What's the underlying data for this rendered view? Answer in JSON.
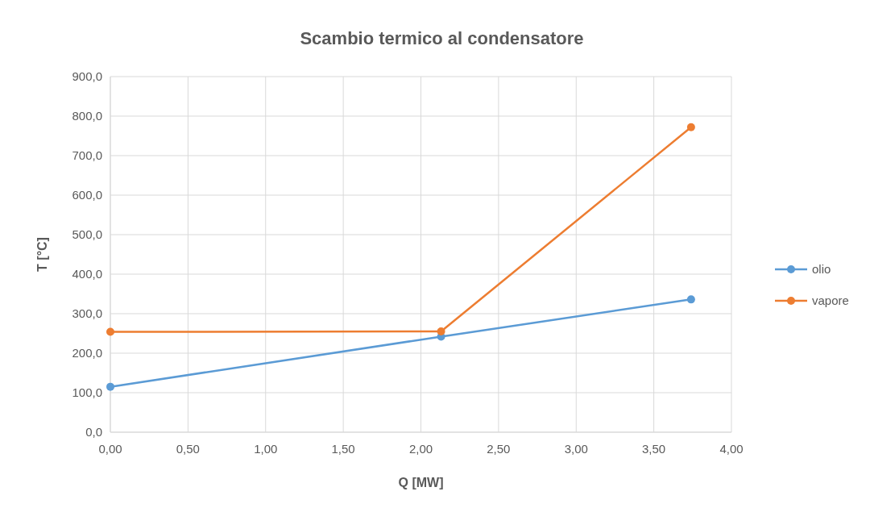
{
  "chart_data": {
    "type": "line",
    "title": "Scambio termico al condensatore",
    "xlabel": "Q [MW]",
    "ylabel": "T [°C]",
    "x": [
      0,
      2.13,
      3.74
    ],
    "series": [
      {
        "name": "olio",
        "color": "#5b9bd5",
        "values": [
          115,
          242,
          336
        ]
      },
      {
        "name": "vapore",
        "color": "#ed7d31",
        "values": [
          254,
          255,
          772
        ]
      }
    ],
    "xlim": [
      0,
      4
    ],
    "xticks": [
      {
        "value": 0,
        "label": "0,00"
      },
      {
        "value": 0.5,
        "label": "0,50"
      },
      {
        "value": 1,
        "label": "1,00"
      },
      {
        "value": 1.5,
        "label": "1,50"
      },
      {
        "value": 2,
        "label": "2,00"
      },
      {
        "value": 2.5,
        "label": "2,50"
      },
      {
        "value": 3,
        "label": "3,00"
      },
      {
        "value": 3.5,
        "label": "3,50"
      },
      {
        "value": 4,
        "label": "4,00"
      }
    ],
    "ylim": [
      0,
      900
    ],
    "yticks": [
      {
        "value": 0,
        "label": "0,0"
      },
      {
        "value": 100,
        "label": "100,0"
      },
      {
        "value": 200,
        "label": "200,0"
      },
      {
        "value": 300,
        "label": "300,0"
      },
      {
        "value": 400,
        "label": "400,0"
      },
      {
        "value": 500,
        "label": "500,0"
      },
      {
        "value": 600,
        "label": "600,0"
      },
      {
        "value": 700,
        "label": "700,0"
      },
      {
        "value": 800,
        "label": "800,0"
      },
      {
        "value": 900,
        "label": "900,0"
      }
    ],
    "grid": true,
    "legend": "right",
    "marker": "circle",
    "line_style": "solid"
  }
}
